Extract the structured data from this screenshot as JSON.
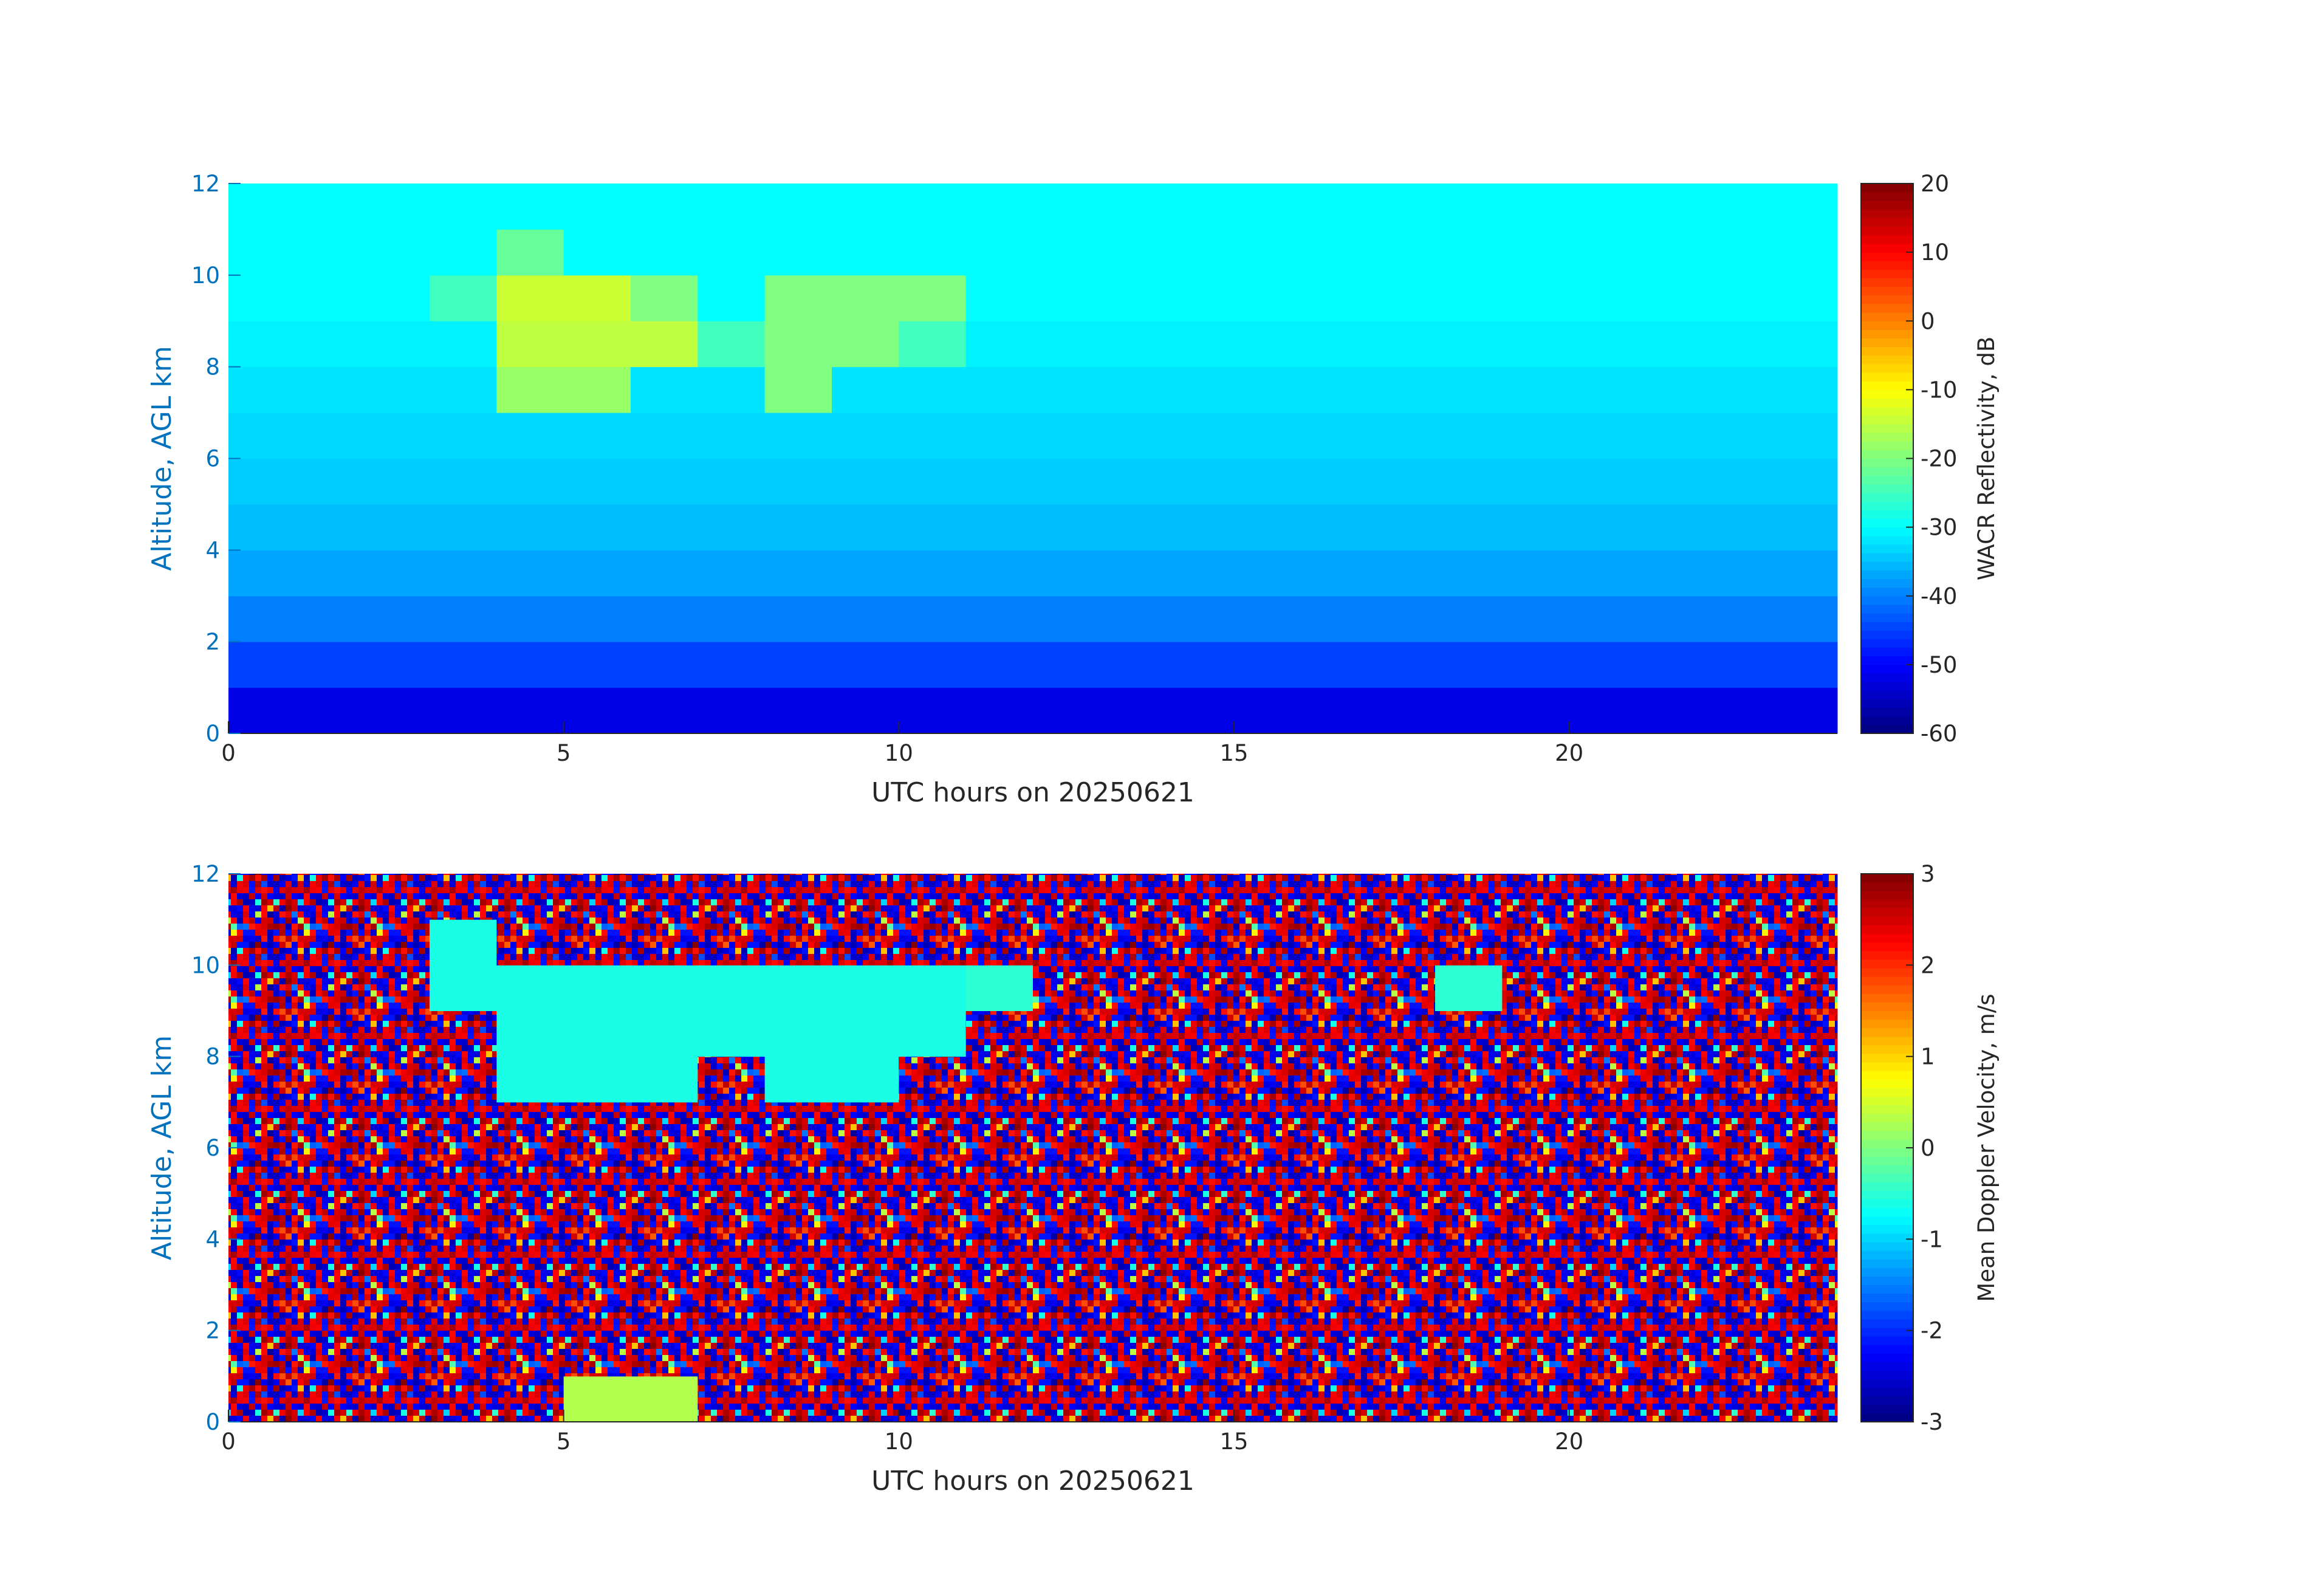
{
  "chart_data": [
    {
      "type": "heatmap",
      "xlabel": "UTC hours on 20250621",
      "ylabel": "Altitude, AGL km",
      "x": [
        0.5,
        1.5,
        2.5,
        3.5,
        4.5,
        5.5,
        6.5,
        7.5,
        8.5,
        9.5,
        10.5,
        11.5,
        12.5,
        13.5,
        14.5,
        15.5,
        16.5,
        17.5,
        18.5,
        19.5,
        20.5,
        21.5,
        22.5,
        23.5
      ],
      "y": [
        0.5,
        1.5,
        2.5,
        3.5,
        4.5,
        5.5,
        6.5,
        7.5,
        8.5,
        9.5,
        10.5,
        11.5
      ],
      "z": [
        [
          -52,
          -52,
          -52,
          -52,
          -52,
          -52,
          -52,
          -52,
          -52,
          -52,
          -52,
          -52,
          -52,
          -52,
          -52,
          -52,
          -52,
          -52,
          -52,
          -52,
          -52,
          -52,
          -52,
          -52
        ],
        [
          -45,
          -45,
          -45,
          -45,
          -45,
          -45,
          -45,
          -45,
          -45,
          -45,
          -45,
          -45,
          -45,
          -45,
          -45,
          -45,
          -45,
          -45,
          -45,
          -45,
          -45,
          -45,
          -45,
          -45
        ],
        [
          -40,
          -40,
          -40,
          -40,
          -40,
          -40,
          -40,
          -40,
          -40,
          -40,
          -40,
          -40,
          -40,
          -40,
          -40,
          -40,
          -40,
          -40,
          -40,
          -40,
          -40,
          -40,
          -40,
          -40
        ],
        [
          -37,
          -37,
          -37,
          -37,
          -37,
          -37,
          -37,
          -37,
          -37,
          -37,
          -37,
          -37,
          -37,
          -37,
          -37,
          -37,
          -37,
          -37,
          -37,
          -37,
          -37,
          -37,
          -37,
          -37
        ],
        [
          -35,
          -35,
          -35,
          -35,
          -35,
          -35,
          -35,
          -35,
          -35,
          -35,
          -35,
          -35,
          -35,
          -35,
          -35,
          -35,
          -35,
          -35,
          -35,
          -35,
          -35,
          -35,
          -35,
          -35
        ],
        [
          -34,
          -34,
          -34,
          -34,
          -34,
          -34,
          -34,
          -34,
          -34,
          -34,
          -34,
          -34,
          -34,
          -34,
          -34,
          -34,
          -34,
          -34,
          -34,
          -34,
          -34,
          -34,
          -34,
          -34
        ],
        [
          -33,
          -33,
          -33,
          -33,
          -33,
          -33,
          -33,
          -33,
          -33,
          -33,
          -33,
          -33,
          -33,
          -33,
          -33,
          -33,
          -33,
          -33,
          -33,
          -33,
          -33,
          -33,
          -33,
          -33
        ],
        [
          -32,
          -32,
          -32,
          -32,
          -18,
          -18,
          -32,
          -32,
          -20,
          -32,
          -32,
          -32,
          -32,
          -32,
          -32,
          -32,
          -32,
          -32,
          -32,
          -32,
          -32,
          -32,
          -32,
          -32
        ],
        [
          -31,
          -31,
          -31,
          -31,
          -15,
          -15,
          -15,
          -25,
          -20,
          -20,
          -25,
          -31,
          -31,
          -31,
          -31,
          -31,
          -31,
          -31,
          -31,
          -31,
          -31,
          -31,
          -31,
          -31
        ],
        [
          -30,
          -30,
          -30,
          -25,
          -14,
          -14,
          -20,
          -30,
          -20,
          -20,
          -20,
          -30,
          -30,
          -30,
          -30,
          -30,
          -30,
          -30,
          -30,
          -30,
          -30,
          -30,
          -30,
          -30
        ],
        [
          -30,
          -30,
          -30,
          -30,
          -22,
          -30,
          -30,
          -30,
          -30,
          -30,
          -30,
          -30,
          -30,
          -30,
          -30,
          -30,
          -30,
          -30,
          -30,
          -30,
          -30,
          -30,
          -30,
          -30
        ],
        [
          -30,
          -30,
          -30,
          -30,
          -30,
          -30,
          -30,
          -30,
          -30,
          -30,
          -30,
          -30,
          -30,
          -30,
          -30,
          -30,
          -30,
          -30,
          -30,
          -30,
          -30,
          -30,
          -30,
          -30
        ]
      ],
      "xlim": [
        0,
        24
      ],
      "xticks": [
        0,
        5,
        10,
        15,
        20
      ],
      "ylim": [
        0,
        12
      ],
      "yticks": [
        0,
        2,
        4,
        6,
        8,
        10,
        12
      ],
      "colormap": "jet",
      "colorbar_label": "WACR Reflectivity, dB",
      "clim": [
        -60,
        20
      ],
      "cticks": [
        -60,
        -50,
        -40,
        -30,
        -20,
        -10,
        0,
        10,
        20
      ]
    },
    {
      "type": "heatmap",
      "xlabel": "UTC hours on 20250621",
      "ylabel": "Altitude, AGL km",
      "x": [
        0.5,
        1.5,
        2.5,
        3.5,
        4.5,
        5.5,
        6.5,
        7.5,
        8.5,
        9.5,
        10.5,
        11.5,
        12.5,
        13.5,
        14.5,
        15.5,
        16.5,
        17.5,
        18.5,
        19.5,
        20.5,
        21.5,
        22.5,
        23.5
      ],
      "y": [
        0.5,
        1.5,
        2.5,
        3.5,
        4.5,
        5.5,
        6.5,
        7.5,
        8.5,
        9.5,
        10.5,
        11.5
      ],
      "z": [
        [
          null,
          null,
          null,
          null,
          null,
          0.3,
          0.3,
          null,
          null,
          null,
          null,
          null,
          null,
          null,
          null,
          null,
          null,
          null,
          null,
          null,
          null,
          null,
          null,
          null
        ],
        [
          null,
          null,
          null,
          null,
          null,
          null,
          null,
          null,
          null,
          null,
          null,
          null,
          null,
          null,
          null,
          null,
          null,
          null,
          null,
          null,
          null,
          null,
          null,
          null
        ],
        [
          null,
          null,
          null,
          null,
          null,
          null,
          null,
          null,
          null,
          null,
          null,
          null,
          null,
          null,
          null,
          null,
          null,
          null,
          null,
          null,
          null,
          null,
          null,
          null
        ],
        [
          null,
          null,
          null,
          null,
          null,
          null,
          null,
          null,
          null,
          null,
          null,
          null,
          null,
          null,
          null,
          null,
          null,
          null,
          null,
          null,
          null,
          null,
          null,
          null
        ],
        [
          null,
          null,
          null,
          null,
          null,
          null,
          null,
          null,
          null,
          null,
          null,
          null,
          null,
          null,
          null,
          null,
          null,
          null,
          null,
          null,
          null,
          null,
          null,
          null
        ],
        [
          null,
          null,
          null,
          null,
          null,
          null,
          null,
          null,
          null,
          null,
          null,
          null,
          null,
          null,
          null,
          null,
          null,
          null,
          null,
          null,
          null,
          null,
          null,
          null
        ],
        [
          null,
          null,
          null,
          null,
          null,
          null,
          null,
          null,
          null,
          null,
          null,
          null,
          null,
          null,
          null,
          null,
          null,
          null,
          null,
          null,
          null,
          null,
          null,
          null
        ],
        [
          null,
          null,
          null,
          null,
          -0.6,
          -0.6,
          -0.6,
          null,
          -0.6,
          -0.6,
          null,
          null,
          null,
          null,
          null,
          null,
          null,
          null,
          null,
          null,
          null,
          null,
          null,
          null
        ],
        [
          null,
          null,
          null,
          null,
          -0.6,
          -0.6,
          -0.6,
          -0.6,
          -0.6,
          -0.6,
          -0.6,
          null,
          null,
          null,
          null,
          null,
          null,
          null,
          null,
          null,
          null,
          null,
          null,
          null
        ],
        [
          null,
          null,
          null,
          -0.6,
          -0.6,
          -0.6,
          -0.6,
          -0.6,
          -0.6,
          -0.6,
          -0.6,
          -0.5,
          null,
          null,
          null,
          null,
          null,
          null,
          -0.5,
          null,
          null,
          null,
          null,
          null
        ],
        [
          null,
          null,
          null,
          -0.6,
          null,
          null,
          null,
          null,
          null,
          null,
          null,
          null,
          null,
          null,
          null,
          null,
          null,
          null,
          null,
          null,
          null,
          null,
          null,
          null
        ],
        [
          null,
          null,
          null,
          null,
          null,
          null,
          null,
          null,
          null,
          null,
          null,
          null,
          null,
          null,
          null,
          null,
          null,
          null,
          null,
          null,
          null,
          null,
          null,
          null
        ]
      ],
      "xlim": [
        0,
        24
      ],
      "xticks": [
        0,
        5,
        10,
        15,
        20
      ],
      "ylim": [
        0,
        12
      ],
      "yticks": [
        0,
        2,
        4,
        6,
        8,
        10,
        12
      ],
      "colormap": "jet",
      "colorbar_label": "Mean Doppler Velocity, m/s",
      "clim": [
        -3,
        3
      ],
      "cticks": [
        -3,
        -2,
        -1,
        0,
        1,
        2,
        3
      ]
    }
  ]
}
